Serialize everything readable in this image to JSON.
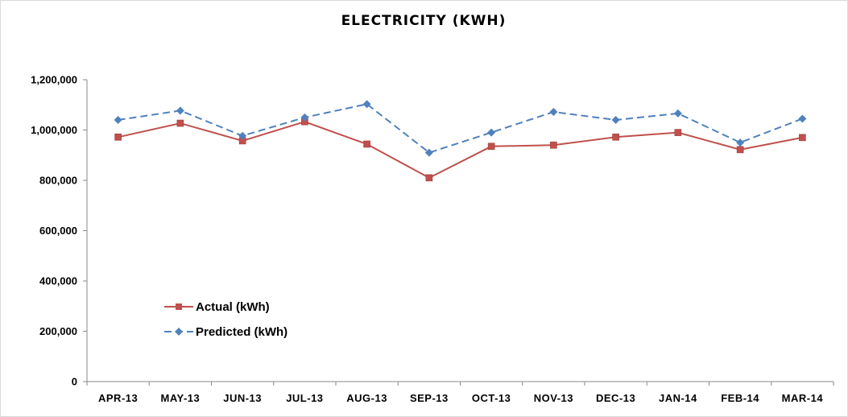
{
  "chart_data": {
    "type": "line",
    "title": "ELECTRICITY (KWH)",
    "xlabel": "",
    "ylabel": "",
    "categories": [
      "APR-13",
      "MAY-13",
      "JUN-13",
      "JUL-13",
      "AUG-13",
      "SEP-13",
      "OCT-13",
      "NOV-13",
      "DEC-13",
      "JAN-14",
      "FEB-14",
      "MAR-14"
    ],
    "ylim": [
      0,
      1200000
    ],
    "yticks": [
      0,
      200000,
      400000,
      600000,
      800000,
      1000000,
      1200000
    ],
    "ytick_labels": [
      "0",
      "200,000",
      "400,000",
      "600,000",
      "800,000",
      "1,000,000",
      "1,200,000"
    ],
    "grid": false,
    "legend_position": "bottom-left",
    "series": [
      {
        "name": "Actual (kWh)",
        "color": "#c0504d",
        "marker": "square",
        "dash": "solid",
        "values": [
          972000,
          1027000,
          957000,
          1033000,
          944000,
          810000,
          935000,
          940000,
          972000,
          990000,
          922000,
          970000
        ]
      },
      {
        "name": "Predicted (kWh)",
        "color": "#4f81bd",
        "marker": "diamond",
        "dash": "dashed",
        "values": [
          1040000,
          1077000,
          977000,
          1050000,
          1103000,
          910000,
          990000,
          1072000,
          1040000,
          1066000,
          950000,
          1045000
        ]
      }
    ]
  }
}
